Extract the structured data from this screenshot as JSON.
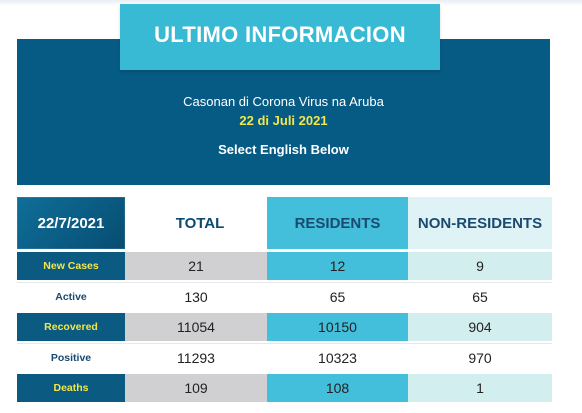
{
  "header": {
    "title": "ULTIMO INFORMACION",
    "line1": "Casonan di Corona Virus na Aruba",
    "line2": "22 di Juli 2021",
    "line3": "Select English Below"
  },
  "colors": {
    "banner": "#065b85",
    "title_box": "#38b9d4",
    "date_text": "#f2e74a",
    "residents": "#43bfdc",
    "non_residents": "#d3eeee",
    "total_shade": "#d0d0d3"
  },
  "table": {
    "date": "22/7/2021",
    "columns": [
      "TOTAL",
      "RESIDENTS",
      "NON-RESIDENTS"
    ],
    "rows": [
      {
        "label": "New Cases",
        "total": "21",
        "residents": "12",
        "non_residents": "9"
      },
      {
        "label": "Active",
        "total": "130",
        "residents": "65",
        "non_residents": "65"
      },
      {
        "label": "Recovered",
        "total": "11054",
        "residents": "10150",
        "non_residents": "904"
      },
      {
        "label": "Positive",
        "total": "11293",
        "residents": "10323",
        "non_residents": "970"
      },
      {
        "label": "Deaths",
        "total": "109",
        "residents": "108",
        "non_residents": "1"
      }
    ]
  }
}
